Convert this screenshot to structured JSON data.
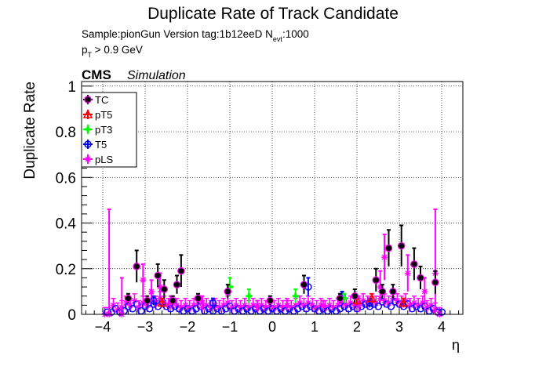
{
  "header": {
    "title": "Duplicate Rate of Track Candidate",
    "sample_line": "Sample:pionGun   Version tag:1b12eeD  N",
    "nevt_sub": "evt",
    "nevt_value": ":1000",
    "pt_prefix": "p",
    "pt_sub": "T",
    "pt_cut": " > 0.9 GeV",
    "cms_label": "CMS",
    "simulation_label": "Simulation"
  },
  "chart_data": {
    "type": "scatter",
    "title": "Duplicate Rate of Track Candidate",
    "xlabel": "η",
    "ylabel": "Duplicate Rate",
    "xlim": [
      -4.5,
      4.5
    ],
    "ylim": [
      0,
      1.02
    ],
    "x_ticks": [
      "−4",
      "−3",
      "−2",
      "−1",
      "0",
      "1",
      "2",
      "3",
      "4"
    ],
    "y_ticks": [
      "0",
      "0.2",
      "0.4",
      "0.6",
      "0.8",
      "1"
    ],
    "grid": true,
    "legend_position": "top-left",
    "series": [
      {
        "name": "TC",
        "color": "#000000",
        "marker": "circle-filled",
        "points": [
          {
            "x": -3.4,
            "y": 0.07,
            "err": 0.02
          },
          {
            "x": -3.2,
            "y": 0.21,
            "err": 0.07
          },
          {
            "x": -2.95,
            "y": 0.06,
            "err": 0.02
          },
          {
            "x": -2.7,
            "y": 0.17,
            "err": 0.05
          },
          {
            "x": -2.55,
            "y": 0.11,
            "err": 0.04
          },
          {
            "x": -2.35,
            "y": 0.06,
            "err": 0.02
          },
          {
            "x": -2.25,
            "y": 0.13,
            "err": 0.04
          },
          {
            "x": -2.15,
            "y": 0.19,
            "err": 0.07
          },
          {
            "x": -1.75,
            "y": 0.07,
            "err": 0.02
          },
          {
            "x": -1.05,
            "y": 0.1,
            "err": 0.03
          },
          {
            "x": -0.05,
            "y": 0.06,
            "err": 0.02
          },
          {
            "x": 0.75,
            "y": 0.13,
            "err": 0.04
          },
          {
            "x": 1.6,
            "y": 0.07,
            "err": 0.02
          },
          {
            "x": 1.95,
            "y": 0.08,
            "err": 0.03
          },
          {
            "x": 2.45,
            "y": 0.15,
            "err": 0.05
          },
          {
            "x": 2.6,
            "y": 0.1,
            "err": 0.03
          },
          {
            "x": 2.75,
            "y": 0.29,
            "err": 0.08
          },
          {
            "x": 2.85,
            "y": 0.1,
            "err": 0.03
          },
          {
            "x": 3.05,
            "y": 0.3,
            "err": 0.09
          },
          {
            "x": 3.35,
            "y": 0.22,
            "err": 0.07
          },
          {
            "x": 3.5,
            "y": 0.16,
            "err": 0.05
          },
          {
            "x": 3.85,
            "y": 0.14,
            "err": 0.05
          }
        ]
      },
      {
        "name": "pT5",
        "color": "#ff0000",
        "marker": "triangle-open",
        "points": [
          {
            "x": -2.6,
            "y": 0.05,
            "err": 0.02
          },
          {
            "x": 2.0,
            "y": 0.06,
            "err": 0.02
          },
          {
            "x": 2.35,
            "y": 0.07,
            "err": 0.02
          },
          {
            "x": 3.1,
            "y": 0.05,
            "err": 0.02
          }
        ]
      },
      {
        "name": "pT3",
        "color": "#00ff00",
        "marker": "cross",
        "points": [
          {
            "x": -1.0,
            "y": 0.12,
            "err": 0.04
          },
          {
            "x": -0.55,
            "y": 0.08,
            "err": 0.03
          },
          {
            "x": 0.55,
            "y": 0.08,
            "err": 0.03
          },
          {
            "x": 1.7,
            "y": 0.07,
            "err": 0.02
          }
        ]
      },
      {
        "name": "T5",
        "color": "#0000ff",
        "marker": "circle-open",
        "points": [
          {
            "x": -2.8,
            "y": 0.06,
            "err": 0.02
          },
          {
            "x": -1.4,
            "y": 0.05,
            "err": 0.02
          },
          {
            "x": 0.85,
            "y": 0.12,
            "err": 0.04
          },
          {
            "x": 1.65,
            "y": 0.08,
            "err": 0.02
          },
          {
            "x": 2.3,
            "y": 0.05,
            "err": 0.02
          }
        ]
      },
      {
        "name": "pLS",
        "color": "#ff00ff",
        "marker": "star-open",
        "points": [
          {
            "x": -3.85,
            "y": 0.0,
            "err": 0.46
          },
          {
            "x": -3.55,
            "y": 0.0,
            "err": 0.16
          },
          {
            "x": -3.05,
            "y": 0.15,
            "err": 0.07
          },
          {
            "x": -2.85,
            "y": 0.1,
            "err": 0.05
          },
          {
            "x": -2.65,
            "y": 0.12,
            "err": 0.06
          },
          {
            "x": -2.4,
            "y": 0.05,
            "err": 0.03
          },
          {
            "x": -1.65,
            "y": 0.05,
            "err": 0.03
          },
          {
            "x": -0.35,
            "y": 0.04,
            "err": 0.02
          },
          {
            "x": 0.35,
            "y": 0.04,
            "err": 0.02
          },
          {
            "x": 1.2,
            "y": 0.04,
            "err": 0.02
          },
          {
            "x": 2.05,
            "y": 0.04,
            "err": 0.03
          },
          {
            "x": 2.55,
            "y": 0.12,
            "err": 0.07
          },
          {
            "x": 2.65,
            "y": 0.25,
            "err": 0.1
          },
          {
            "x": 3.2,
            "y": 0.18,
            "err": 0.08
          },
          {
            "x": 3.6,
            "y": 0.1,
            "err": 0.06
          },
          {
            "x": 3.85,
            "y": 0.18,
            "err": 0.28
          }
        ]
      }
    ],
    "background_dense": [
      {
        "x": -3.95,
        "y": 0.0
      },
      {
        "x": -3.85,
        "y": 0.0
      },
      {
        "x": -3.75,
        "y": 0.04
      },
      {
        "x": -3.65,
        "y": 0.02
      },
      {
        "x": -3.55,
        "y": 0.03
      },
      {
        "x": -3.45,
        "y": 0.05
      },
      {
        "x": -3.35,
        "y": 0.04
      },
      {
        "x": -3.25,
        "y": 0.06
      },
      {
        "x": -3.15,
        "y": 0.03
      },
      {
        "x": -3.05,
        "y": 0.05
      },
      {
        "x": -2.95,
        "y": 0.04
      },
      {
        "x": -2.85,
        "y": 0.06
      },
      {
        "x": -2.75,
        "y": 0.05
      },
      {
        "x": -2.65,
        "y": 0.07
      },
      {
        "x": -2.55,
        "y": 0.05
      },
      {
        "x": -2.45,
        "y": 0.04
      },
      {
        "x": -2.35,
        "y": 0.05
      },
      {
        "x": -2.25,
        "y": 0.04
      },
      {
        "x": -2.15,
        "y": 0.03
      },
      {
        "x": -2.05,
        "y": 0.04
      },
      {
        "x": -1.95,
        "y": 0.03
      },
      {
        "x": -1.85,
        "y": 0.04
      },
      {
        "x": -1.75,
        "y": 0.05
      },
      {
        "x": -1.65,
        "y": 0.03
      },
      {
        "x": -1.55,
        "y": 0.04
      },
      {
        "x": -1.45,
        "y": 0.03
      },
      {
        "x": -1.35,
        "y": 0.04
      },
      {
        "x": -1.25,
        "y": 0.03
      },
      {
        "x": -1.15,
        "y": 0.04
      },
      {
        "x": -1.05,
        "y": 0.05
      },
      {
        "x": -0.95,
        "y": 0.03
      },
      {
        "x": -0.85,
        "y": 0.04
      },
      {
        "x": -0.75,
        "y": 0.03
      },
      {
        "x": -0.65,
        "y": 0.04
      },
      {
        "x": -0.55,
        "y": 0.03
      },
      {
        "x": -0.45,
        "y": 0.04
      },
      {
        "x": -0.35,
        "y": 0.03
      },
      {
        "x": -0.25,
        "y": 0.04
      },
      {
        "x": -0.15,
        "y": 0.03
      },
      {
        "x": -0.05,
        "y": 0.04
      },
      {
        "x": 0.05,
        "y": 0.03
      },
      {
        "x": 0.15,
        "y": 0.04
      },
      {
        "x": 0.25,
        "y": 0.03
      },
      {
        "x": 0.35,
        "y": 0.04
      },
      {
        "x": 0.45,
        "y": 0.03
      },
      {
        "x": 0.55,
        "y": 0.04
      },
      {
        "x": 0.65,
        "y": 0.05
      },
      {
        "x": 0.75,
        "y": 0.04
      },
      {
        "x": 0.85,
        "y": 0.05
      },
      {
        "x": 0.95,
        "y": 0.04
      },
      {
        "x": 1.05,
        "y": 0.03
      },
      {
        "x": 1.15,
        "y": 0.04
      },
      {
        "x": 1.25,
        "y": 0.03
      },
      {
        "x": 1.35,
        "y": 0.04
      },
      {
        "x": 1.45,
        "y": 0.03
      },
      {
        "x": 1.55,
        "y": 0.04
      },
      {
        "x": 1.65,
        "y": 0.05
      },
      {
        "x": 1.75,
        "y": 0.04
      },
      {
        "x": 1.85,
        "y": 0.05
      },
      {
        "x": 1.95,
        "y": 0.04
      },
      {
        "x": 2.05,
        "y": 0.05
      },
      {
        "x": 2.15,
        "y": 0.06
      },
      {
        "x": 2.25,
        "y": 0.05
      },
      {
        "x": 2.35,
        "y": 0.06
      },
      {
        "x": 2.45,
        "y": 0.05
      },
      {
        "x": 2.55,
        "y": 0.07
      },
      {
        "x": 2.65,
        "y": 0.06
      },
      {
        "x": 2.75,
        "y": 0.05
      },
      {
        "x": 2.85,
        "y": 0.07
      },
      {
        "x": 2.95,
        "y": 0.06
      },
      {
        "x": 3.05,
        "y": 0.05
      },
      {
        "x": 3.15,
        "y": 0.06
      },
      {
        "x": 3.25,
        "y": 0.04
      },
      {
        "x": 3.35,
        "y": 0.05
      },
      {
        "x": 3.45,
        "y": 0.04
      },
      {
        "x": 3.55,
        "y": 0.05
      },
      {
        "x": 3.65,
        "y": 0.03
      },
      {
        "x": 3.75,
        "y": 0.04
      },
      {
        "x": 3.85,
        "y": 0.02
      },
      {
        "x": 3.95,
        "y": 0.0
      }
    ]
  }
}
